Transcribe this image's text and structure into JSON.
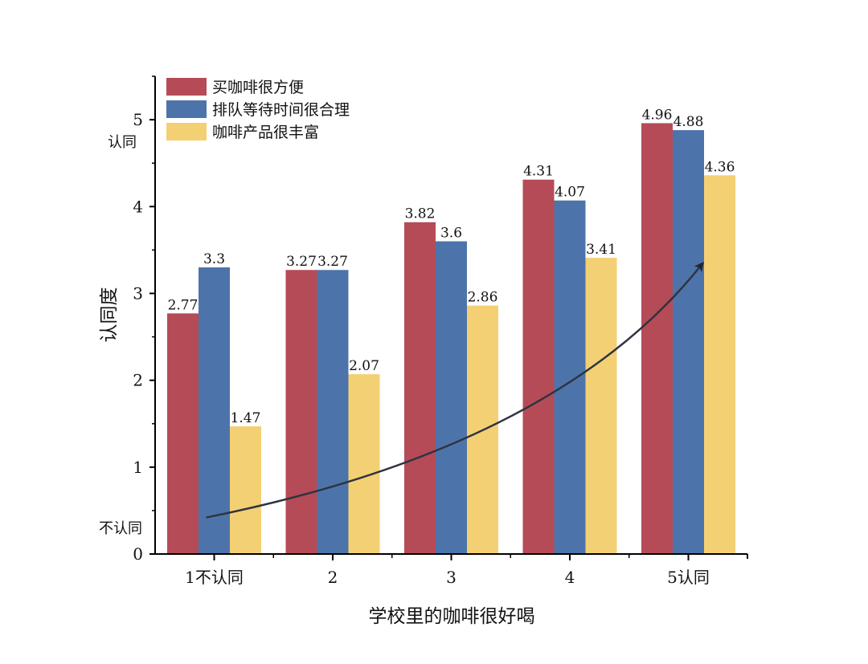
{
  "chart_data": {
    "type": "bar",
    "title": "",
    "xlabel": "学校里的咖啡很好喝",
    "ylabel": "认同度",
    "ylim": [
      0,
      5.5
    ],
    "yticks": [
      0,
      1,
      2,
      3,
      4,
      5
    ],
    "categories": [
      "1",
      "2",
      "3",
      "4",
      "5"
    ],
    "category_suffixes": [
      "不认同",
      "",
      "",
      "",
      "认同"
    ],
    "y_side_labels": {
      "top": "认同",
      "bottom": "不认同"
    },
    "legend_position": "top-left",
    "grid": false,
    "series": [
      {
        "name": "买咖啡很方便",
        "color": "#b54b57",
        "values": [
          2.77,
          3.27,
          3.82,
          4.31,
          4.96
        ],
        "labels": [
          "2.77",
          "3.27",
          "3.82",
          "4.31",
          "4.96"
        ]
      },
      {
        "name": "排队等待时间很合理",
        "color": "#4d74aa",
        "values": [
          3.3,
          3.27,
          3.6,
          4.07,
          4.88
        ],
        "labels": [
          "3.3",
          "3.27",
          "3.6",
          "4.07",
          "4.88"
        ]
      },
      {
        "name": "咖啡产品很丰富",
        "color": "#f4d074",
        "values": [
          1.47,
          2.07,
          2.86,
          3.41,
          4.36
        ],
        "labels": [
          "1.47",
          "2.07",
          "2.86",
          "3.41",
          "4.36"
        ]
      }
    ],
    "annotations": [
      {
        "type": "trend-arrow",
        "description": "upward curved arrow",
        "from": {
          "x": "1",
          "y": 0.42
        },
        "to": {
          "x": "5",
          "y": 3.35
        }
      }
    ]
  }
}
